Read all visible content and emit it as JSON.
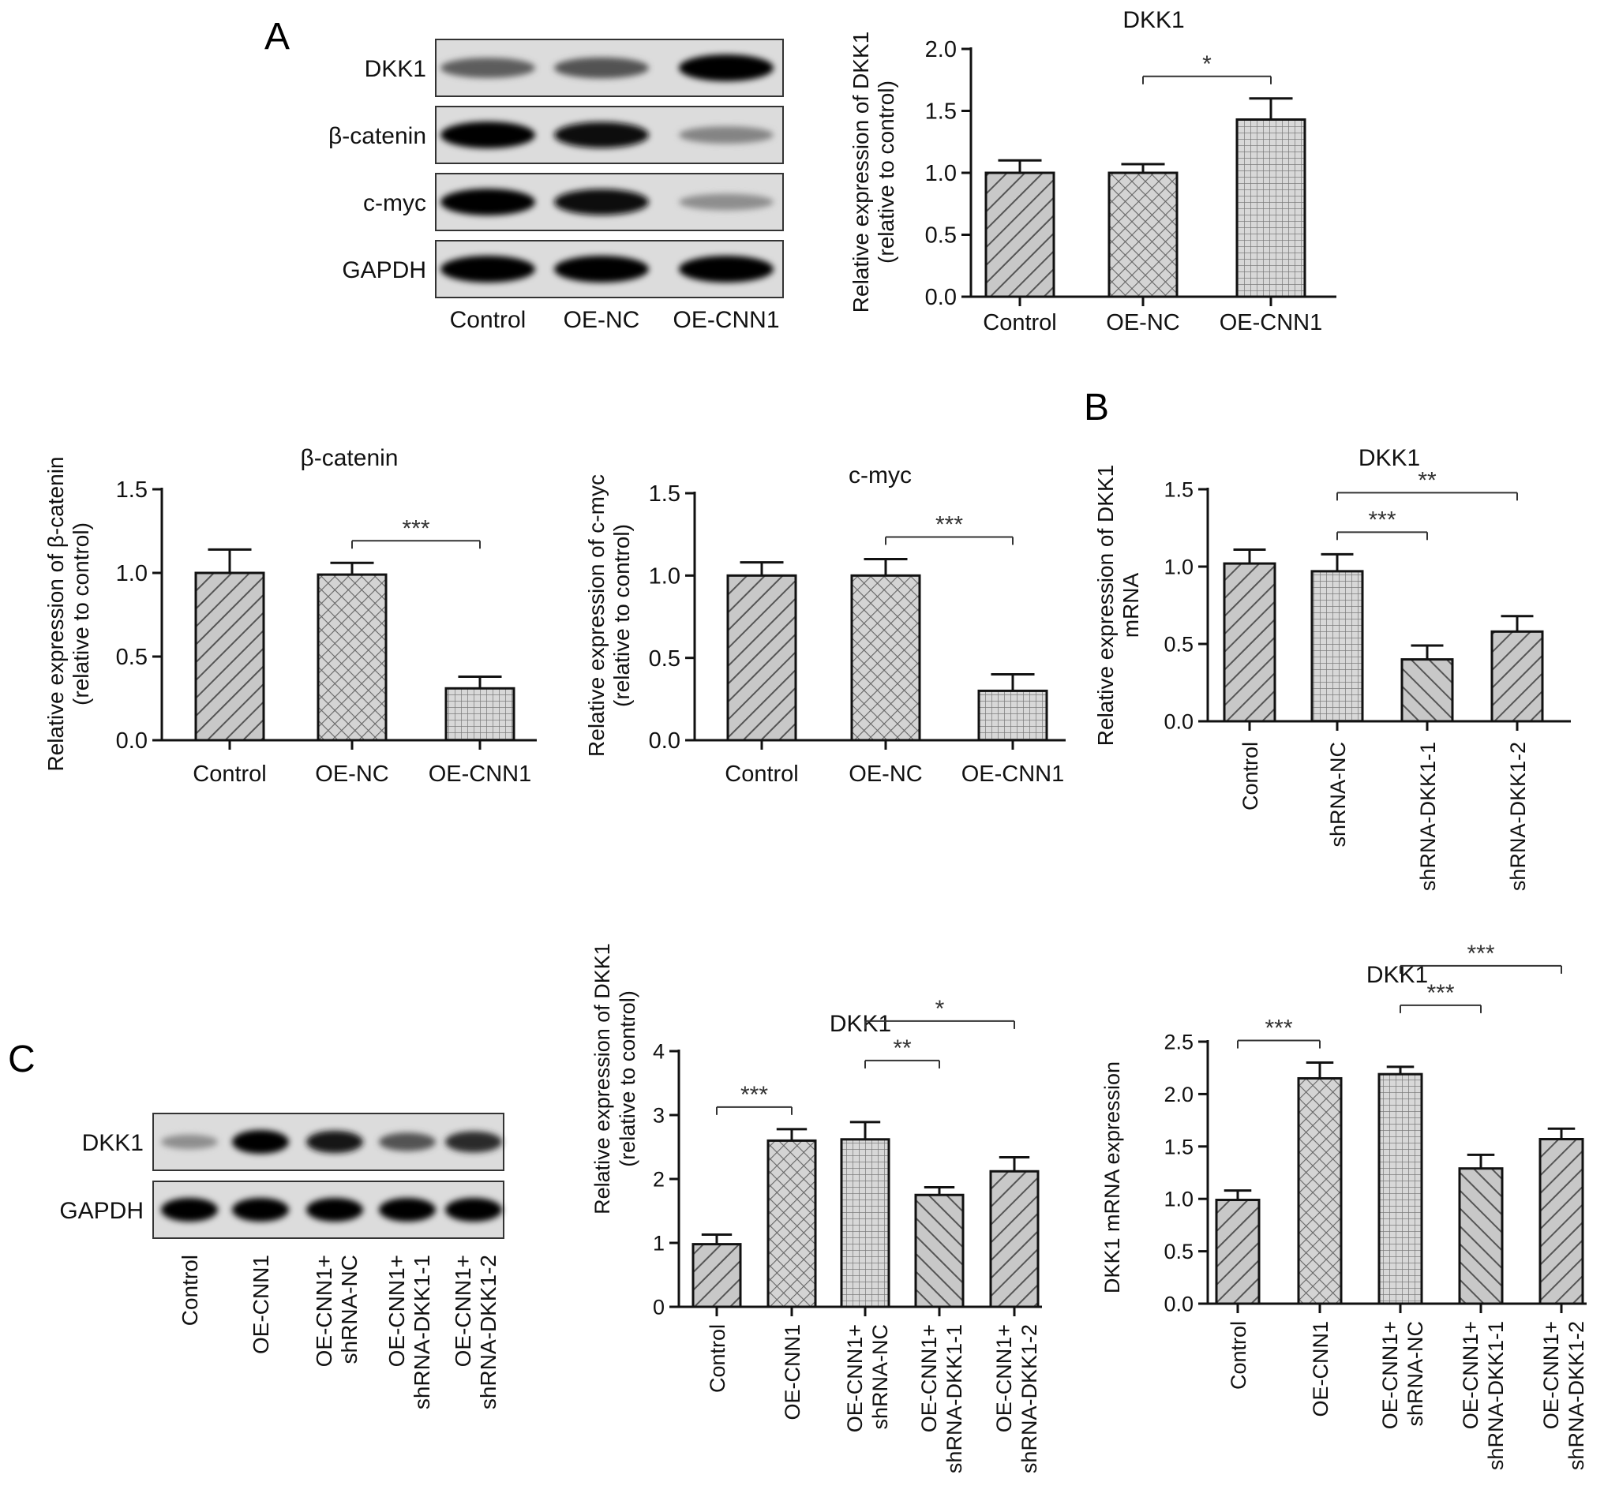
{
  "panels": {
    "A": "A",
    "B": "B",
    "C": "C"
  },
  "blot_a": {
    "rows": [
      "DKK1",
      "β-catenin",
      "c-myc",
      "GAPDH"
    ],
    "lanes": [
      "Control",
      "OE-NC",
      "OE-CNN1"
    ],
    "intensities": [
      [
        0.55,
        0.6,
        1.0
      ],
      [
        1.0,
        0.95,
        0.35
      ],
      [
        1.0,
        0.95,
        0.3
      ],
      [
        1.0,
        1.0,
        1.0
      ]
    ]
  },
  "blot_c": {
    "rows": [
      "DKK1",
      "GAPDH"
    ],
    "lanes": [
      "Control",
      "OE-CNN1",
      "OE-CNN1+\nshRNA-NC",
      "OE-CNN1+\nshRNA-DKK1-1",
      "OE-CNN1+\nshRNA-DKK1-2"
    ],
    "intensities": [
      [
        0.3,
        1.0,
        0.9,
        0.6,
        0.8
      ],
      [
        1.0,
        1.0,
        1.0,
        1.0,
        1.0
      ]
    ]
  },
  "colors": {
    "bar_fill": "#c8c8c8",
    "stroke": "#111111",
    "background": "#ffffff"
  },
  "chart_data": [
    {
      "id": "a-dkk1",
      "type": "bar",
      "title": "DKK1",
      "ylabel": "Relative expression of DKK1\n(relative to control)",
      "categories": [
        "Control",
        "OE-NC",
        "OE-CNN1"
      ],
      "values": [
        1.0,
        1.0,
        1.43
      ],
      "errors": [
        0.1,
        0.07,
        0.17
      ],
      "patterns": [
        "diag-left",
        "crosshatch",
        "grid"
      ],
      "ylim": [
        0,
        2.0
      ],
      "yticks": [
        "0.0",
        "0.5",
        "1.0",
        "1.5",
        "2.0"
      ],
      "xlabel_rotation": "horizontal",
      "significance": [
        {
          "from": 1,
          "to": 2,
          "label": "*"
        }
      ]
    },
    {
      "id": "a-bcat",
      "type": "bar",
      "title": "β-catenin",
      "ylabel": "Relative expression of β-catenin\n(relative to control)",
      "categories": [
        "Control",
        "OE-NC",
        "OE-CNN1"
      ],
      "values": [
        1.0,
        0.99,
        0.31
      ],
      "errors": [
        0.14,
        0.07,
        0.07
      ],
      "patterns": [
        "diag-left",
        "crosshatch",
        "grid"
      ],
      "ylim": [
        0,
        1.5
      ],
      "yticks": [
        "0.0",
        "0.5",
        "1.0",
        "1.5"
      ],
      "xlabel_rotation": "horizontal",
      "significance": [
        {
          "from": 1,
          "to": 2,
          "label": "***"
        }
      ]
    },
    {
      "id": "a-cmyc",
      "type": "bar",
      "title": "c-myc",
      "ylabel": "Relative expression of c-myc\n(relative to control)",
      "categories": [
        "Control",
        "OE-NC",
        "OE-CNN1"
      ],
      "values": [
        1.0,
        1.0,
        0.3
      ],
      "errors": [
        0.08,
        0.1,
        0.1
      ],
      "patterns": [
        "diag-left",
        "crosshatch",
        "grid"
      ],
      "ylim": [
        0,
        1.5
      ],
      "yticks": [
        "0.0",
        "0.5",
        "1.0",
        "1.5"
      ],
      "xlabel_rotation": "horizontal",
      "significance": [
        {
          "from": 1,
          "to": 2,
          "label": "***"
        }
      ]
    },
    {
      "id": "b-dkk1",
      "type": "bar",
      "title": "DKK1",
      "ylabel": "Relative expression of DKK1\nmRNA",
      "categories": [
        "Control",
        "shRNA-NC",
        "shRNA-DKK1-1",
        "shRNA-DKK1-2"
      ],
      "values": [
        1.02,
        0.97,
        0.4,
        0.58
      ],
      "errors": [
        0.09,
        0.11,
        0.09,
        0.1
      ],
      "patterns": [
        "diag-left",
        "grid",
        "diag-right",
        "diag-left"
      ],
      "ylim": [
        0,
        1.5
      ],
      "yticks": [
        "0.0",
        "0.5",
        "1.0",
        "1.5"
      ],
      "xlabel_rotation": "vertical",
      "significance": [
        {
          "from": 1,
          "to": 2,
          "label": "***"
        },
        {
          "from": 1,
          "to": 3,
          "label": "**"
        }
      ]
    },
    {
      "id": "c-dkk1-protein",
      "type": "bar",
      "title": "DKK1",
      "ylabel": "Relative expression of DKK1\n(relative to control)",
      "categories": [
        "Control",
        "OE-CNN1",
        "OE-CNN1+\nshRNA-NC",
        "OE-CNN1+\nshRNA-DKK1-1",
        "OE-CNN1+\nshRNA-DKK1-2"
      ],
      "values": [
        0.98,
        2.6,
        2.62,
        1.75,
        2.12
      ],
      "errors": [
        0.15,
        0.18,
        0.27,
        0.12,
        0.22
      ],
      "patterns": [
        "diag-left",
        "crosshatch",
        "grid",
        "diag-right",
        "diag-left"
      ],
      "ylim": [
        0,
        4
      ],
      "yticks": [
        "0",
        "1",
        "2",
        "3",
        "4"
      ],
      "xlabel_rotation": "vertical",
      "significance": [
        {
          "from": 0,
          "to": 1,
          "label": "***"
        },
        {
          "from": 2,
          "to": 3,
          "label": "**"
        },
        {
          "from": 2,
          "to": 4,
          "label": "*"
        }
      ]
    },
    {
      "id": "c-dkk1-mrna",
      "type": "bar",
      "title": "DKK1",
      "ylabel": "DKK1 mRNA expression",
      "categories": [
        "Control",
        "OE-CNN1",
        "OE-CNN1+\nshRNA-NC",
        "OE-CNN1+\nshRNA-DKK1-1",
        "OE-CNN1+\nshRNA-DKK1-2"
      ],
      "values": [
        0.99,
        2.15,
        2.19,
        1.29,
        1.57
      ],
      "errors": [
        0.09,
        0.15,
        0.07,
        0.13,
        0.1
      ],
      "patterns": [
        "diag-left",
        "crosshatch",
        "grid",
        "diag-right",
        "diag-left"
      ],
      "ylim": [
        0,
        2.5
      ],
      "yticks": [
        "0.0",
        "0.5",
        "1.0",
        "1.5",
        "2.0",
        "2.5"
      ],
      "xlabel_rotation": "vertical",
      "significance": [
        {
          "from": 0,
          "to": 1,
          "label": "***"
        },
        {
          "from": 2,
          "to": 3,
          "label": "***"
        },
        {
          "from": 2,
          "to": 4,
          "label": "***"
        }
      ]
    }
  ]
}
